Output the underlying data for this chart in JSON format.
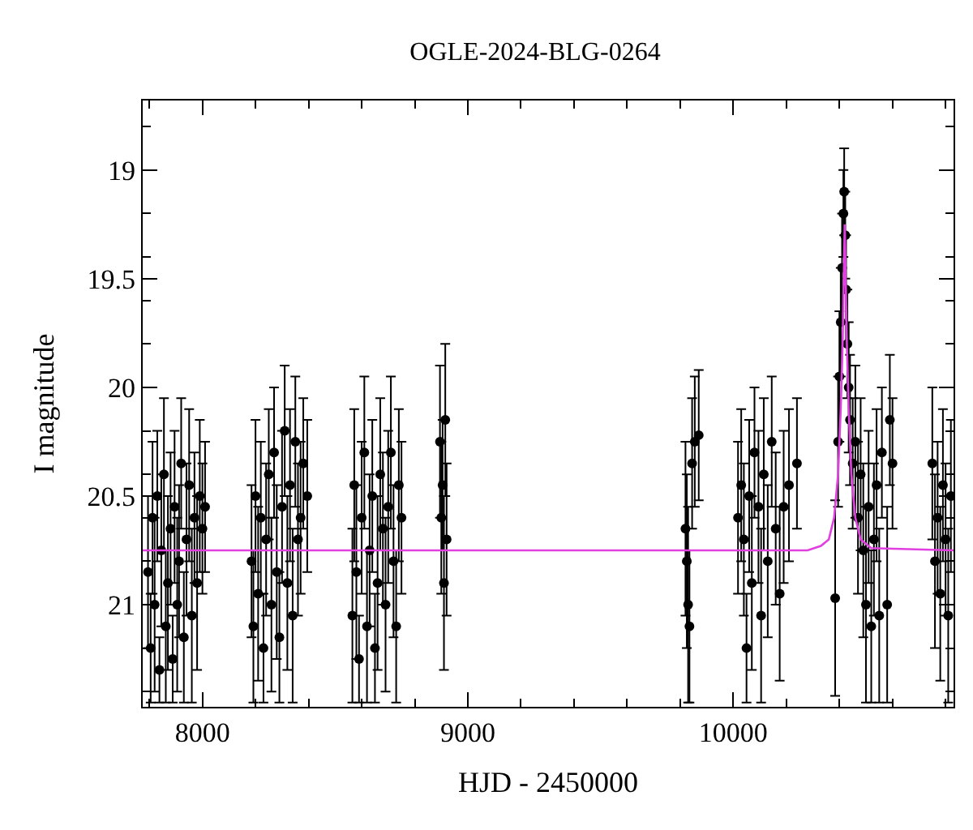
{
  "chart_data": {
    "type": "scatter",
    "title": "OGLE-2024-BLG-0264",
    "xlabel": "HJD - 2450000",
    "ylabel": "I magnitude",
    "xlim": [
      7775,
      10830
    ],
    "ylim": [
      21.47,
      18.68
    ],
    "xticks": [
      8000,
      9000,
      10000
    ],
    "yticks": [
      19,
      19.5,
      20,
      20.5,
      21
    ],
    "legend": false,
    "series": [
      {
        "color": "#000000",
        "marker": "circle",
        "x": [
          7795,
          7805,
          7812,
          7820,
          7830,
          7838,
          7845,
          7855,
          7862,
          7870,
          7880,
          7888,
          7895,
          7905,
          7912,
          7920,
          7930,
          7940,
          7950,
          7960,
          7970,
          7980,
          7990,
          8000,
          8010,
          8185,
          8192,
          8200,
          8210,
          8220,
          8230,
          8240,
          8250,
          8260,
          8270,
          8280,
          8290,
          8300,
          8310,
          8320,
          8330,
          8340,
          8350,
          8360,
          8370,
          8380,
          8395,
          8565,
          8572,
          8580,
          8590,
          8600,
          8610,
          8620,
          8630,
          8640,
          8650,
          8660,
          8670,
          8680,
          8690,
          8700,
          8710,
          8720,
          8730,
          8740,
          8750,
          8895,
          8900,
          8905,
          8910,
          8915,
          8920,
          9820,
          9825,
          9830,
          9835,
          9845,
          9855,
          9870,
          10018,
          10030,
          10040,
          10050,
          10060,
          10070,
          10080,
          10095,
          10105,
          10115,
          10130,
          10145,
          10160,
          10175,
          10190,
          10210,
          10240,
          10384,
          10395,
          10400,
          10405,
          10410,
          10415,
          10418,
          10422,
          10425,
          10430,
          10435,
          10440,
          10450,
          10460,
          10470,
          10480,
          10490,
          10500,
          10510,
          10520,
          10530,
          10540,
          10550,
          10560,
          10580,
          10590,
          10600,
          10750,
          10760,
          10770,
          10780,
          10790,
          10800,
          10810,
          10820
        ],
        "values": [
          20.85,
          21.2,
          20.6,
          21.0,
          20.5,
          21.3,
          20.75,
          20.4,
          21.1,
          20.9,
          20.65,
          21.25,
          20.55,
          21.0,
          20.8,
          20.35,
          21.15,
          20.7,
          20.45,
          21.05,
          20.6,
          20.9,
          20.5,
          20.65,
          20.55,
          20.8,
          21.1,
          20.5,
          20.95,
          20.6,
          21.2,
          20.7,
          20.4,
          21.0,
          20.3,
          20.85,
          21.15,
          20.55,
          20.2,
          20.9,
          20.45,
          21.05,
          20.25,
          20.7,
          20.6,
          20.35,
          20.5,
          21.05,
          20.45,
          20.85,
          21.25,
          20.6,
          20.3,
          21.1,
          20.75,
          20.5,
          21.2,
          20.9,
          20.4,
          20.65,
          21.0,
          20.55,
          20.3,
          20.8,
          21.1,
          20.45,
          20.6,
          20.25,
          20.6,
          20.45,
          20.9,
          20.15,
          20.7,
          20.65,
          20.8,
          21.0,
          21.1,
          20.35,
          20.25,
          20.22,
          20.6,
          20.45,
          20.7,
          21.2,
          20.5,
          20.9,
          20.3,
          20.55,
          21.05,
          20.4,
          20.8,
          20.25,
          20.65,
          20.95,
          20.55,
          20.45,
          20.35,
          20.97,
          20.25,
          19.95,
          19.7,
          19.45,
          19.2,
          19.1,
          19.3,
          19.55,
          19.8,
          20.0,
          20.15,
          20.35,
          20.25,
          20.6,
          20.4,
          20.75,
          21.0,
          20.55,
          21.1,
          20.7,
          20.45,
          21.05,
          20.3,
          21.0,
          20.15,
          20.35,
          20.35,
          20.8,
          20.6,
          20.95,
          20.45,
          20.7,
          21.05,
          20.5
        ],
        "errors": [
          0.35,
          0.25,
          0.35,
          0.4,
          0.3,
          0.15,
          0.35,
          0.35,
          0.35,
          0.4,
          0.35,
          0.2,
          0.35,
          0.4,
          0.35,
          0.3,
          0.3,
          0.35,
          0.35,
          0.4,
          0.3,
          0.4,
          0.35,
          0.3,
          0.3,
          0.35,
          0.35,
          0.35,
          0.4,
          0.35,
          0.25,
          0.35,
          0.3,
          0.4,
          0.3,
          0.4,
          0.3,
          0.35,
          0.3,
          0.4,
          0.35,
          0.4,
          0.3,
          0.35,
          0.35,
          0.3,
          0.35,
          0.4,
          0.35,
          0.4,
          0.2,
          0.35,
          0.35,
          0.35,
          0.35,
          0.35,
          0.25,
          0.4,
          0.35,
          0.35,
          0.4,
          0.35,
          0.35,
          0.35,
          0.35,
          0.35,
          0.35,
          0.35,
          0.35,
          0.3,
          0.4,
          0.35,
          0.35,
          0.4,
          0.4,
          0.45,
          0.35,
          0.3,
          0.3,
          0.3,
          0.35,
          0.35,
          0.35,
          0.25,
          0.35,
          0.4,
          0.3,
          0.35,
          0.4,
          0.35,
          0.35,
          0.3,
          0.35,
          0.4,
          0.35,
          0.35,
          0.3,
          0.45,
          0.3,
          0.3,
          0.25,
          0.25,
          0.2,
          0.2,
          0.2,
          0.25,
          0.25,
          0.3,
          0.3,
          0.3,
          0.35,
          0.35,
          0.35,
          0.4,
          0.45,
          0.35,
          0.35,
          0.35,
          0.35,
          0.4,
          0.3,
          0.45,
          0.3,
          0.3,
          0.35,
          0.4,
          0.35,
          0.4,
          0.35,
          0.35,
          0.4,
          0.35
        ]
      },
      {
        "type": "line",
        "color": "#e040e0",
        "marker": "none",
        "line_style": "solid",
        "x": [
          7775,
          10280,
          10330,
          10360,
          10380,
          10395,
          10405,
          10412,
          10417,
          10420,
          10423,
          10428,
          10435,
          10445,
          10460,
          10480,
          10520,
          10830
        ],
        "values": [
          20.75,
          20.75,
          20.73,
          20.7,
          20.6,
          20.4,
          20.1,
          19.8,
          19.45,
          19.25,
          19.45,
          19.8,
          20.1,
          20.4,
          20.6,
          20.7,
          20.74,
          20.75
        ]
      }
    ]
  }
}
